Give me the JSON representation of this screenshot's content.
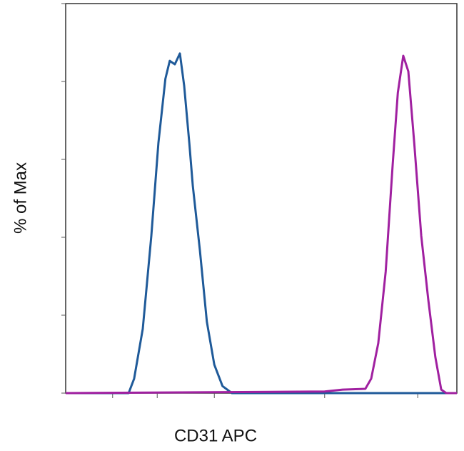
{
  "chart_data": {
    "type": "line",
    "x_label": "CD31 APC",
    "y_label": "% of Max",
    "xlim": [
      0,
      100
    ],
    "ylim": [
      0,
      100
    ],
    "xticks": [
      12.0,
      23.4,
      38.0,
      66.2,
      90.0
    ],
    "yticks": [
      0,
      20,
      40,
      60,
      80,
      100
    ],
    "series": [
      {
        "color": "#1f5a99",
        "x": [
          0,
          16.1,
          17.5,
          19.7,
          21.9,
          23.7,
          25.5,
          26.6,
          27.9,
          29.2,
          30.3,
          31.6,
          32.5,
          34.3,
          36.1,
          38.0,
          40.1,
          42.5,
          100
        ],
        "values": [
          0,
          0,
          3.7,
          16.5,
          40.4,
          64.2,
          80.7,
          85.3,
          84.4,
          87.2,
          78.9,
          64.2,
          53.2,
          36.7,
          18.3,
          7.3,
          1.8,
          0,
          0
        ]
      },
      {
        "color": "#a020a0",
        "x": [
          0,
          66.2,
          70.8,
          76.6,
          78.1,
          79.9,
          81.8,
          83.6,
          84.9,
          86.3,
          87.6,
          89.1,
          90.9,
          92.7,
          94.5,
          96.0,
          97.3,
          100
        ],
        "values": [
          0,
          0.4,
          0.9,
          1.1,
          3.7,
          12.8,
          31.2,
          58.7,
          77.1,
          86.6,
          82.6,
          64.2,
          40.4,
          23.9,
          9.2,
          0.9,
          0,
          0
        ]
      }
    ]
  }
}
